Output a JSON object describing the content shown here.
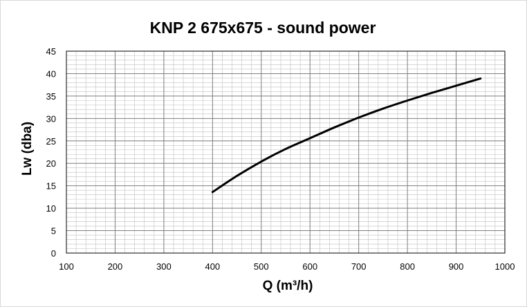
{
  "chart_data": {
    "type": "line",
    "title": "KNP 2 675x675 - sound power",
    "xlabel": "Q (m³/h)",
    "ylabel": "Lw (dba)",
    "xlim": [
      100,
      1000
    ],
    "ylim": [
      0,
      45
    ],
    "x_ticks": [
      "100",
      "200",
      "300",
      "400",
      "500",
      "600",
      "700",
      "800",
      "900",
      "1000"
    ],
    "y_ticks": [
      "0",
      "5",
      "10",
      "15",
      "20",
      "25",
      "30",
      "35",
      "40",
      "45"
    ],
    "grid": true,
    "legend": "none",
    "line_color": "#000000",
    "series": [
      {
        "x": [
          400,
          450,
          500,
          550,
          600,
          650,
          700,
          750,
          800,
          850,
          900,
          950
        ],
        "y": [
          13.6,
          17.2,
          20.4,
          23.2,
          25.6,
          28.0,
          30.2,
          32.2,
          34.0,
          35.7,
          37.3,
          38.9
        ]
      }
    ]
  }
}
